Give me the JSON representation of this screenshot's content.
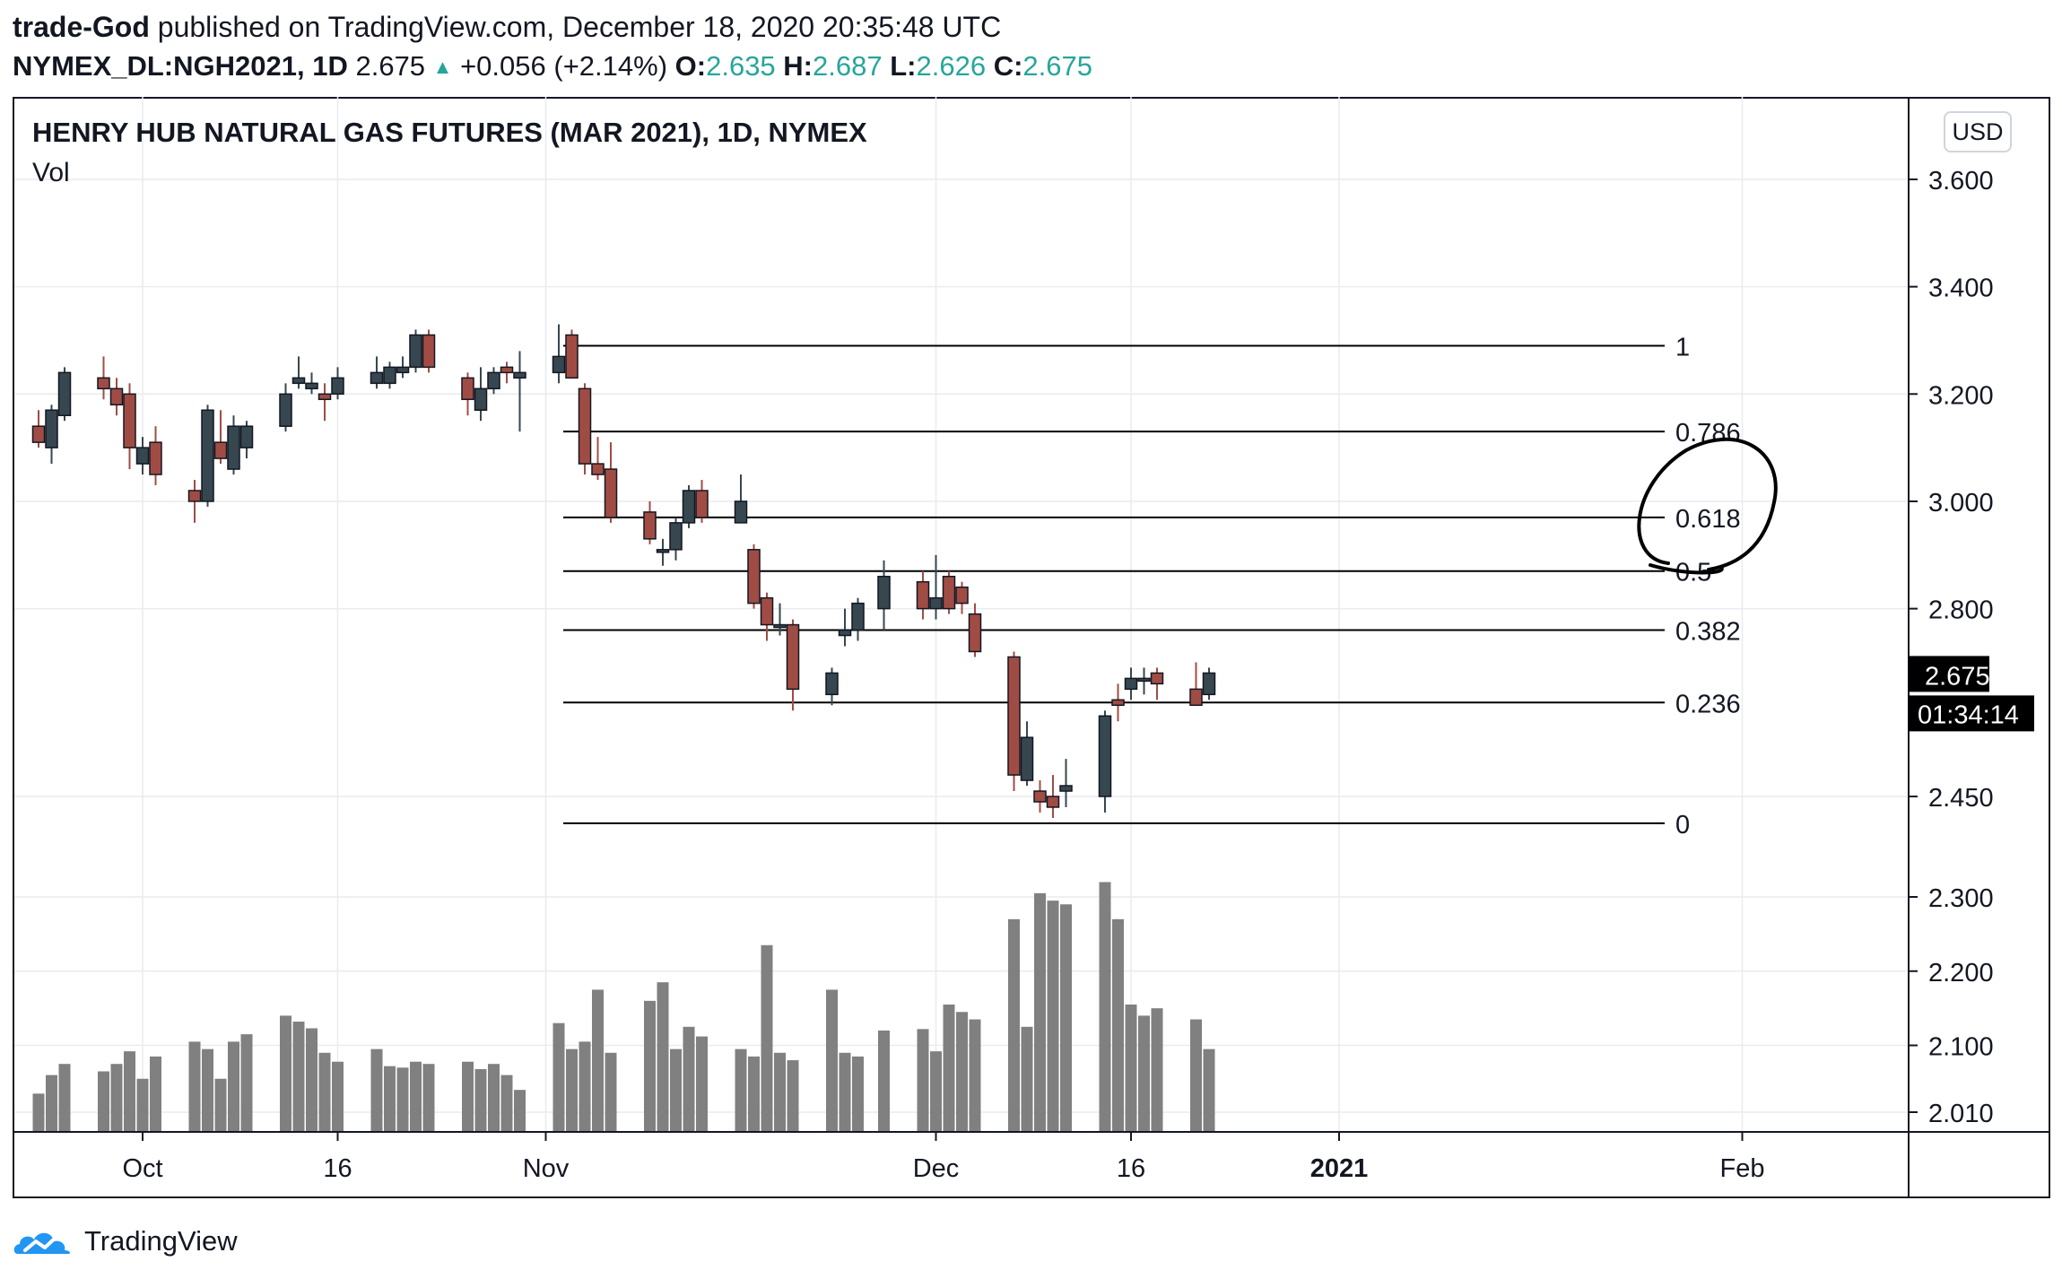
{
  "header": {
    "author": "trade-God",
    "published_text": "published on TradingView.com, December 18, 2020 20:35:48 UTC",
    "symbol": "NYMEX_DL:NGH2021, 1D",
    "last": "2.675",
    "change": "+0.056 (+2.14%)",
    "o_label": "O:",
    "o": "2.635",
    "h_label": "H:",
    "h": "2.687",
    "l_label": "L:",
    "l": "2.626",
    "c_label": "C:",
    "c": "2.675"
  },
  "chart_title": "HENRY HUB NATURAL GAS FUTURES (MAR 2021), 1D, NYMEX",
  "vol_label": "Vol",
  "currency_button": "USD",
  "price_tag": "2.675",
  "countdown_tag": "01:34:14",
  "footer": {
    "brand": "TradingView"
  },
  "colors": {
    "up": "#37474f",
    "down": "#a04c44",
    "volume": "#808080",
    "grid": "#e9ebef",
    "accent": "#26a69a"
  },
  "chart_data": {
    "type": "candlestick",
    "title": "HENRY HUB NATURAL GAS FUTURES (MAR 2021), 1D, NYMEX",
    "price_axis_ticks": [
      "3.600",
      "3.400",
      "3.200",
      "3.000",
      "2.800",
      "2.450"
    ],
    "volume_axis_ticks": [
      "2.300",
      "2.200",
      "2.100",
      "2.010"
    ],
    "x_tick_labels": [
      {
        "label": "Oct",
        "bold": false
      },
      {
        "label": "16",
        "bold": false
      },
      {
        "label": "Nov",
        "bold": false
      },
      {
        "label": "Dec",
        "bold": false
      },
      {
        "label": "16",
        "bold": false
      },
      {
        "label": "2021",
        "bold": true
      },
      {
        "label": "Feb",
        "bold": false
      }
    ],
    "candles": [
      {
        "date": "2020-09-23",
        "o": 3.14,
        "h": 3.17,
        "l": 3.1,
        "c": 3.11,
        "v": 2.035
      },
      {
        "date": "2020-09-24",
        "o": 3.1,
        "h": 3.18,
        "l": 3.07,
        "c": 3.17,
        "v": 2.06
      },
      {
        "date": "2020-09-25",
        "o": 3.16,
        "h": 3.25,
        "l": 3.15,
        "c": 3.24,
        "v": 2.075
      },
      {
        "date": "2020-09-28",
        "o": 3.23,
        "h": 3.27,
        "l": 3.19,
        "c": 3.21,
        "v": 2.065
      },
      {
        "date": "2020-09-29",
        "o": 3.21,
        "h": 3.23,
        "l": 3.16,
        "c": 3.18,
        "v": 2.075
      },
      {
        "date": "2020-09-30",
        "o": 3.2,
        "h": 3.22,
        "l": 3.06,
        "c": 3.1,
        "v": 2.092
      },
      {
        "date": "2020-10-01",
        "o": 3.07,
        "h": 3.12,
        "l": 3.05,
        "c": 3.1,
        "v": 2.055
      },
      {
        "date": "2020-10-02",
        "o": 3.11,
        "h": 3.14,
        "l": 3.03,
        "c": 3.05,
        "v": 2.085
      },
      {
        "date": "2020-10-05",
        "o": 3.02,
        "h": 3.04,
        "l": 2.96,
        "c": 3.0,
        "v": 2.105
      },
      {
        "date": "2020-10-06",
        "o": 3.0,
        "h": 3.18,
        "l": 2.99,
        "c": 3.17,
        "v": 2.095
      },
      {
        "date": "2020-10-07",
        "o": 3.11,
        "h": 3.17,
        "l": 3.07,
        "c": 3.08,
        "v": 2.055
      },
      {
        "date": "2020-10-08",
        "o": 3.06,
        "h": 3.16,
        "l": 3.05,
        "c": 3.14,
        "v": 2.105
      },
      {
        "date": "2020-10-09",
        "o": 3.1,
        "h": 3.15,
        "l": 3.08,
        "c": 3.14,
        "v": 2.115
      },
      {
        "date": "2020-10-12",
        "o": 3.14,
        "h": 3.22,
        "l": 3.13,
        "c": 3.2,
        "v": 2.14
      },
      {
        "date": "2020-10-13",
        "o": 3.22,
        "h": 3.27,
        "l": 3.21,
        "c": 3.23,
        "v": 2.132
      },
      {
        "date": "2020-10-14",
        "o": 3.21,
        "h": 3.24,
        "l": 3.2,
        "c": 3.22,
        "v": 2.123
      },
      {
        "date": "2020-10-15",
        "o": 3.2,
        "h": 3.22,
        "l": 3.15,
        "c": 3.19,
        "v": 2.09
      },
      {
        "date": "2020-10-16",
        "o": 3.2,
        "h": 3.25,
        "l": 3.19,
        "c": 3.23,
        "v": 2.078
      },
      {
        "date": "2020-10-19",
        "o": 3.22,
        "h": 3.27,
        "l": 3.21,
        "c": 3.24,
        "v": 2.095
      },
      {
        "date": "2020-10-20",
        "o": 3.22,
        "h": 3.26,
        "l": 3.21,
        "c": 3.25,
        "v": 2.072
      },
      {
        "date": "2020-10-21",
        "o": 3.24,
        "h": 3.27,
        "l": 3.23,
        "c": 3.25,
        "v": 2.07
      },
      {
        "date": "2020-10-22",
        "o": 3.25,
        "h": 3.32,
        "l": 3.24,
        "c": 3.31,
        "v": 2.078
      },
      {
        "date": "2020-10-23",
        "o": 3.31,
        "h": 3.32,
        "l": 3.24,
        "c": 3.25,
        "v": 2.075
      },
      {
        "date": "2020-10-26",
        "o": 3.23,
        "h": 3.24,
        "l": 3.16,
        "c": 3.19,
        "v": 2.078
      },
      {
        "date": "2020-10-27",
        "o": 3.17,
        "h": 3.25,
        "l": 3.15,
        "c": 3.21,
        "v": 2.068
      },
      {
        "date": "2020-10-28",
        "o": 3.21,
        "h": 3.25,
        "l": 3.2,
        "c": 3.24,
        "v": 2.075
      },
      {
        "date": "2020-10-29",
        "o": 3.25,
        "h": 3.26,
        "l": 3.22,
        "c": 3.24,
        "v": 2.06
      },
      {
        "date": "2020-10-30",
        "o": 3.23,
        "h": 3.28,
        "l": 3.13,
        "c": 3.24,
        "v": 2.04
      },
      {
        "date": "2020-11-02",
        "o": 3.24,
        "h": 3.33,
        "l": 3.22,
        "c": 3.27,
        "v": 2.13
      },
      {
        "date": "2020-11-03",
        "o": 3.31,
        "h": 3.32,
        "l": 3.23,
        "c": 3.23,
        "v": 2.095
      },
      {
        "date": "2020-11-04",
        "o": 3.21,
        "h": 3.22,
        "l": 3.05,
        "c": 3.07,
        "v": 2.105
      },
      {
        "date": "2020-11-05",
        "o": 3.07,
        "h": 3.12,
        "l": 3.04,
        "c": 3.05,
        "v": 2.175
      },
      {
        "date": "2020-11-06",
        "o": 3.06,
        "h": 3.11,
        "l": 2.96,
        "c": 2.97,
        "v": 2.09
      },
      {
        "date": "2020-11-09",
        "o": 2.98,
        "h": 3.0,
        "l": 2.92,
        "c": 2.93,
        "v": 2.16
      },
      {
        "date": "2020-11-10",
        "o": 2.91,
        "h": 2.93,
        "l": 2.88,
        "c": 2.91,
        "v": 2.185
      },
      {
        "date": "2020-11-11",
        "o": 2.91,
        "h": 2.97,
        "l": 2.89,
        "c": 2.96,
        "v": 2.095
      },
      {
        "date": "2020-11-12",
        "o": 2.96,
        "h": 3.03,
        "l": 2.95,
        "c": 3.02,
        "v": 2.125
      },
      {
        "date": "2020-11-13",
        "o": 3.02,
        "h": 3.04,
        "l": 2.96,
        "c": 2.97,
        "v": 2.112
      },
      {
        "date": "2020-11-16",
        "o": 2.96,
        "h": 3.05,
        "l": 2.96,
        "c": 3.0,
        "v": 2.095
      },
      {
        "date": "2020-11-17",
        "o": 2.91,
        "h": 2.92,
        "l": 2.8,
        "c": 2.81,
        "v": 2.085
      },
      {
        "date": "2020-11-18",
        "o": 2.82,
        "h": 2.83,
        "l": 2.74,
        "c": 2.77,
        "v": 2.235
      },
      {
        "date": "2020-11-19",
        "o": 2.77,
        "h": 2.81,
        "l": 2.75,
        "c": 2.77,
        "v": 2.09
      },
      {
        "date": "2020-11-20",
        "o": 2.77,
        "h": 2.78,
        "l": 2.61,
        "c": 2.65,
        "v": 2.08
      },
      {
        "date": "2020-11-23",
        "o": 2.64,
        "h": 2.69,
        "l": 2.62,
        "c": 2.68,
        "v": 2.175
      },
      {
        "date": "2020-11-24",
        "o": 2.75,
        "h": 2.8,
        "l": 2.73,
        "c": 2.76,
        "v": 2.09
      },
      {
        "date": "2020-11-25",
        "o": 2.76,
        "h": 2.82,
        "l": 2.74,
        "c": 2.81,
        "v": 2.085
      },
      {
        "date": "2020-11-27",
        "o": 2.8,
        "h": 2.89,
        "l": 2.76,
        "c": 2.86,
        "v": 2.12
      },
      {
        "date": "2020-11-30",
        "o": 2.85,
        "h": 2.87,
        "l": 2.78,
        "c": 2.8,
        "v": 2.122
      },
      {
        "date": "2020-12-01",
        "o": 2.8,
        "h": 2.9,
        "l": 2.78,
        "c": 2.82,
        "v": 2.092
      },
      {
        "date": "2020-12-02",
        "o": 2.86,
        "h": 2.87,
        "l": 2.79,
        "c": 2.8,
        "v": 2.155
      },
      {
        "date": "2020-12-03",
        "o": 2.84,
        "h": 2.85,
        "l": 2.79,
        "c": 2.81,
        "v": 2.145
      },
      {
        "date": "2020-12-04",
        "o": 2.79,
        "h": 2.81,
        "l": 2.71,
        "c": 2.72,
        "v": 2.135
      },
      {
        "date": "2020-12-07",
        "o": 2.71,
        "h": 2.72,
        "l": 2.46,
        "c": 2.49,
        "v": 2.27
      },
      {
        "date": "2020-12-08",
        "o": 2.48,
        "h": 2.59,
        "l": 2.47,
        "c": 2.56,
        "v": 2.125
      },
      {
        "date": "2020-12-09",
        "o": 2.46,
        "h": 2.48,
        "l": 2.42,
        "c": 2.44,
        "v": 2.305
      },
      {
        "date": "2020-12-10",
        "o": 2.45,
        "h": 2.49,
        "l": 2.41,
        "c": 2.43,
        "v": 2.295
      },
      {
        "date": "2020-12-11",
        "o": 2.46,
        "h": 2.52,
        "l": 2.43,
        "c": 2.47,
        "v": 2.29
      },
      {
        "date": "2020-12-14",
        "o": 2.45,
        "h": 2.61,
        "l": 2.42,
        "c": 2.6,
        "v": 2.32
      },
      {
        "date": "2020-12-15",
        "o": 2.63,
        "h": 2.66,
        "l": 2.59,
        "c": 2.62,
        "v": 2.27
      },
      {
        "date": "2020-12-16",
        "o": 2.65,
        "h": 2.69,
        "l": 2.63,
        "c": 2.67,
        "v": 2.155
      },
      {
        "date": "2020-12-17",
        "o": 2.67,
        "h": 2.69,
        "l": 2.64,
        "c": 2.67,
        "v": 2.14
      },
      {
        "date": "2020-12-18",
        "o": 2.68,
        "h": 2.69,
        "l": 2.63,
        "c": 2.66,
        "v": 2.15
      },
      {
        "date": "2020-12-21",
        "o": 2.65,
        "h": 2.7,
        "l": 2.62,
        "c": 2.62,
        "v": 2.135
      },
      {
        "date": "2020-12-22",
        "o": 2.64,
        "h": 2.69,
        "l": 2.63,
        "c": 2.68,
        "v": 2.095
      }
    ],
    "fib_levels": [
      {
        "label": "1",
        "price": 3.29
      },
      {
        "label": "0.786",
        "price": 3.13
      },
      {
        "label": "0.618",
        "price": 2.97
      },
      {
        "label": "0.5",
        "price": 2.87
      },
      {
        "label": "0.382",
        "price": 2.76
      },
      {
        "label": "0.236",
        "price": 2.625
      },
      {
        "label": "0",
        "price": 2.4
      }
    ],
    "annotation": {
      "type": "hand-drawn circle",
      "around_levels": [
        "0.618",
        "0.5"
      ]
    },
    "grid": true
  }
}
